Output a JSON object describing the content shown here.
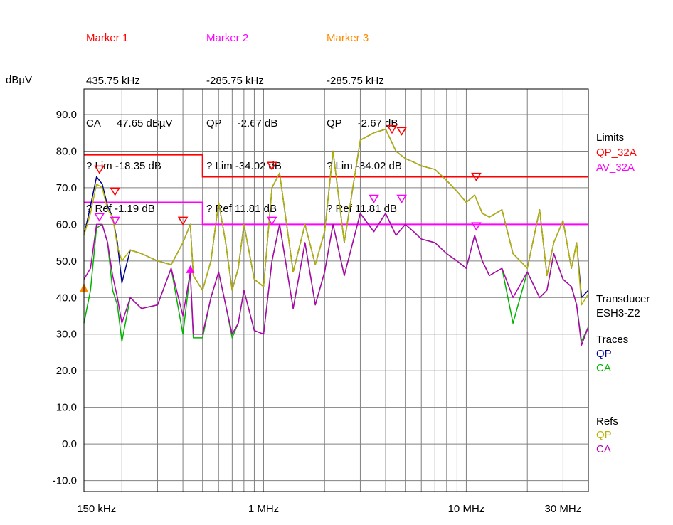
{
  "markers": [
    {
      "title": "Marker 1",
      "color": "#ff0000",
      "freq": "435.75 kHz",
      "det": "CA",
      "val": "47.65 dBµV",
      "lim": "? Lim -18.35 dB",
      "ref": "? Ref -1.19 dB"
    },
    {
      "title": "Marker 2",
      "color": "#ff00ff",
      "freq": "-285.75 kHz",
      "det": "QP",
      "val": "-2.67 dB",
      "lim": "? Lim -34.02 dB",
      "ref": "? Ref 11.81 dB"
    },
    {
      "title": "Marker 3",
      "color": "#ff8c00",
      "freq": "-285.75 kHz",
      "det": "QP",
      "val": "-2.67 dB",
      "lim": "? Lim -34.02 dB",
      "ref": "? Ref 11.81 dB"
    }
  ],
  "side": {
    "limits_title": "Limits",
    "limit1": "QP_32A",
    "limit2": "AV_32A",
    "transducer_title": "Transducer",
    "transducer": "ESH3-Z2",
    "traces_title": "Traces",
    "trace1": "QP",
    "trace2": "CA",
    "refs_title": "Refs",
    "ref1": "QP",
    "ref2": "CA"
  },
  "chart_data": {
    "type": "line",
    "ylabel": "dBµV",
    "xscale": "log",
    "xlim": [
      0.13,
      40
    ],
    "ylim": [
      -13,
      97
    ],
    "yticks": [
      90,
      80,
      70,
      60,
      50,
      40,
      30,
      20,
      10,
      0,
      -10
    ],
    "ytick_labels": [
      "90.0",
      "80.0",
      "70.0",
      "60.0",
      "50.0",
      "40.0",
      "30.0",
      "20.0",
      "10.0",
      "0.0",
      "-10.0"
    ],
    "xticks": [
      0.15,
      1,
      10,
      30
    ],
    "xtick_labels": [
      "150 kHz",
      "1 MHz",
      "10 MHz",
      "30 MHz"
    ],
    "grid": true,
    "colors": {
      "qp_limit": "#ff0000",
      "av_limit": "#ff00ff",
      "qp_trace": "#00008b",
      "ca_trace": "#00b400",
      "qp_ref": "#b4b400",
      "ca_ref": "#b400b4"
    },
    "limits": [
      {
        "name": "QP_32A",
        "x": [
          0.13,
          0.5,
          0.5,
          40
        ],
        "y": [
          79,
          79,
          73,
          73
        ]
      },
      {
        "name": "AV_32A",
        "x": [
          0.13,
          0.5,
          0.5,
          40
        ],
        "y": [
          66,
          66,
          60,
          60
        ]
      }
    ],
    "series": [
      {
        "name": "QP",
        "x": [
          0.13,
          0.14,
          0.15,
          0.16,
          0.17,
          0.18,
          0.19,
          0.2,
          0.22,
          0.25,
          0.3,
          0.35,
          0.4,
          0.435,
          0.45,
          0.5,
          0.55,
          0.6,
          0.65,
          0.7,
          0.75,
          0.8,
          0.9,
          1.0,
          1.1,
          1.2,
          1.4,
          1.6,
          1.8,
          2.0,
          2.2,
          2.5,
          3.0,
          3.5,
          4.0,
          4.5,
          5.0,
          5.5,
          6.0,
          7.0,
          8.0,
          9.0,
          10.0,
          11.0,
          12.0,
          13.0,
          15.0,
          17.0,
          20.0,
          23.0,
          25.0,
          27.0,
          30.0,
          33.0,
          35.0,
          37.0,
          40.0
        ],
        "y": [
          57,
          65,
          73,
          71,
          65,
          62,
          55,
          44,
          53,
          52,
          50,
          49,
          55,
          60,
          46,
          42,
          50,
          66,
          55,
          42,
          48,
          60,
          45,
          43,
          70,
          74,
          47,
          60,
          49,
          58,
          80,
          55,
          83,
          85,
          86,
          80,
          78,
          77,
          76,
          75,
          72,
          69,
          66,
          68,
          63,
          62,
          64,
          52,
          48,
          64,
          46,
          55,
          61,
          48,
          55,
          40,
          42
        ]
      },
      {
        "name": "CA",
        "x": [
          0.13,
          0.14,
          0.15,
          0.16,
          0.17,
          0.18,
          0.19,
          0.2,
          0.22,
          0.25,
          0.3,
          0.35,
          0.4,
          0.435,
          0.45,
          0.5,
          0.55,
          0.6,
          0.65,
          0.7,
          0.75,
          0.8,
          0.9,
          1.0,
          1.1,
          1.2,
          1.4,
          1.6,
          1.8,
          2.0,
          2.2,
          2.5,
          3.0,
          3.5,
          4.0,
          4.5,
          5.0,
          5.5,
          6.0,
          7.0,
          8.0,
          9.0,
          10.0,
          11.0,
          12.0,
          13.0,
          15.0,
          17.0,
          20.0,
          23.0,
          25.0,
          27.0,
          30.0,
          33.0,
          35.0,
          37.0,
          40.0
        ],
        "y": [
          33,
          42,
          59,
          60,
          55,
          42,
          38,
          28,
          40,
          37,
          38,
          48,
          30,
          47,
          29,
          29,
          40,
          47,
          38,
          29,
          33,
          42,
          31,
          30,
          50,
          60,
          37,
          55,
          38,
          47,
          60,
          46,
          63,
          58,
          63,
          57,
          60,
          58,
          56,
          55,
          52,
          50,
          48,
          57,
          50,
          46,
          48,
          33,
          47,
          40,
          42,
          52,
          45,
          43,
          38,
          28,
          32
        ]
      },
      {
        "name": "QP",
        "x": [
          0.13,
          0.14,
          0.15,
          0.16,
          0.17,
          0.18,
          0.19,
          0.2,
          0.22,
          0.25,
          0.3,
          0.35,
          0.4,
          0.435,
          0.45,
          0.5,
          0.55,
          0.6,
          0.65,
          0.7,
          0.75,
          0.8,
          0.9,
          1.0,
          1.1,
          1.2,
          1.4,
          1.6,
          1.8,
          2.0,
          2.2,
          2.5,
          3.0,
          3.5,
          4.0,
          4.5,
          5.0,
          5.5,
          6.0,
          7.0,
          8.0,
          9.0,
          10.0,
          11.0,
          12.0,
          13.0,
          15.0,
          17.0,
          20.0,
          23.0,
          25.0,
          27.0,
          30.0,
          33.0,
          35.0,
          37.0,
          40.0
        ],
        "y": [
          57,
          63,
          71,
          70,
          64,
          62,
          54,
          50,
          53,
          52,
          50,
          49,
          55,
          60,
          46,
          42,
          50,
          66,
          55,
          42,
          48,
          60,
          45,
          43,
          70,
          74,
          47,
          60,
          49,
          58,
          80,
          55,
          83,
          85,
          86,
          80,
          78,
          77,
          76,
          75,
          72,
          69,
          66,
          68,
          63,
          62,
          64,
          52,
          48,
          64,
          46,
          55,
          61,
          48,
          55,
          38,
          41
        ]
      },
      {
        "name": "CA",
        "x": [
          0.13,
          0.14,
          0.15,
          0.16,
          0.17,
          0.18,
          0.19,
          0.2,
          0.22,
          0.25,
          0.3,
          0.35,
          0.4,
          0.435,
          0.45,
          0.5,
          0.55,
          0.6,
          0.65,
          0.7,
          0.75,
          0.8,
          0.9,
          1.0,
          1.1,
          1.2,
          1.4,
          1.6,
          1.8,
          2.0,
          2.2,
          2.5,
          3.0,
          3.5,
          4.0,
          4.5,
          5.0,
          5.5,
          6.0,
          7.0,
          8.0,
          9.0,
          10.0,
          11.0,
          12.0,
          13.0,
          15.0,
          17.0,
          20.0,
          23.0,
          25.0,
          27.0,
          30.0,
          33.0,
          35.0,
          37.0,
          40.0
        ],
        "y": [
          45,
          48,
          60,
          60,
          55,
          46,
          40,
          33,
          40,
          37,
          38,
          48,
          35,
          47,
          30,
          30,
          40,
          47,
          38,
          30,
          33,
          42,
          31,
          30,
          50,
          60,
          37,
          55,
          38,
          47,
          60,
          46,
          63,
          58,
          63,
          57,
          60,
          58,
          56,
          55,
          52,
          50,
          48,
          57,
          50,
          46,
          48,
          40,
          47,
          40,
          42,
          52,
          45,
          43,
          38,
          27,
          32
        ]
      }
    ],
    "marker_points": [
      {
        "kind": "qp",
        "x": 0.155,
        "y": 74
      },
      {
        "kind": "qp",
        "x": 0.185,
        "y": 68
      },
      {
        "kind": "qp",
        "x": 0.4,
        "y": 60
      },
      {
        "kind": "qp",
        "x": 1.1,
        "y": 75
      },
      {
        "kind": "qp",
        "x": 4.3,
        "y": 85
      },
      {
        "kind": "qp",
        "x": 4.8,
        "y": 84.5
      },
      {
        "kind": "qp",
        "x": 11.2,
        "y": 72
      },
      {
        "kind": "av",
        "x": 0.155,
        "y": 61
      },
      {
        "kind": "av",
        "x": 0.185,
        "y": 60
      },
      {
        "kind": "av",
        "x": 1.1,
        "y": 60
      },
      {
        "kind": "av",
        "x": 3.5,
        "y": 66
      },
      {
        "kind": "av",
        "x": 4.8,
        "y": 66
      },
      {
        "kind": "av",
        "x": 11.2,
        "y": 58.5
      },
      {
        "kind": "m1",
        "x": 0.435,
        "y": 47.65
      }
    ]
  }
}
